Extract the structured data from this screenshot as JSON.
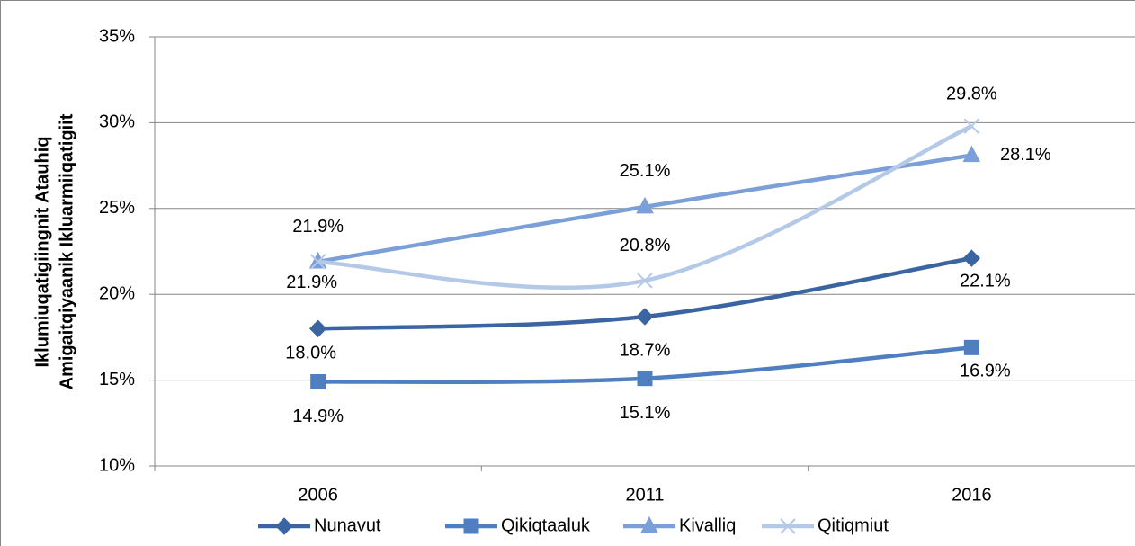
{
  "chart_data": {
    "type": "line",
    "smooth": true,
    "ylabel": [
      "Iklumiuqatigiingnit Atauhiq",
      "Amigaitqiyaanik Ikluarmiiqatigiit"
    ],
    "categories": [
      "2006",
      "2011",
      "2016"
    ],
    "series": [
      {
        "name": "Nunavut",
        "color": "#3b64a2",
        "marker": "diamond",
        "values": [
          18.0,
          18.7,
          22.1
        ],
        "value_labels": [
          "18.0%",
          "18.7%",
          "22.1%"
        ]
      },
      {
        "name": "Qikiqtaaluk",
        "color": "#4f7fc0",
        "marker": "square",
        "values": [
          14.9,
          15.1,
          16.9
        ],
        "value_labels": [
          "14.9%",
          "15.1%",
          "16.9%"
        ]
      },
      {
        "name": "Kivalliq",
        "color": "#7b9fd8",
        "marker": "triangle",
        "values": [
          21.9,
          25.1,
          28.1
        ],
        "value_labels": [
          "21.9%",
          "25.1%",
          "28.1%"
        ]
      },
      {
        "name": "Qitiqmiut",
        "color": "#b4c8e8",
        "marker": "x",
        "values": [
          21.9,
          20.8,
          29.8
        ],
        "value_labels": [
          "21.9%",
          "20.8%",
          "29.8%"
        ]
      }
    ],
    "ylim": [
      10,
      35
    ],
    "yticks": [
      {
        "value": 10,
        "label": "10%"
      },
      {
        "value": 15,
        "label": "15%"
      },
      {
        "value": 20,
        "label": "20%"
      },
      {
        "value": 25,
        "label": "25%"
      },
      {
        "value": 30,
        "label": "30%"
      },
      {
        "value": 35,
        "label": "35%"
      }
    ],
    "grid": true,
    "legend": "bottom"
  }
}
